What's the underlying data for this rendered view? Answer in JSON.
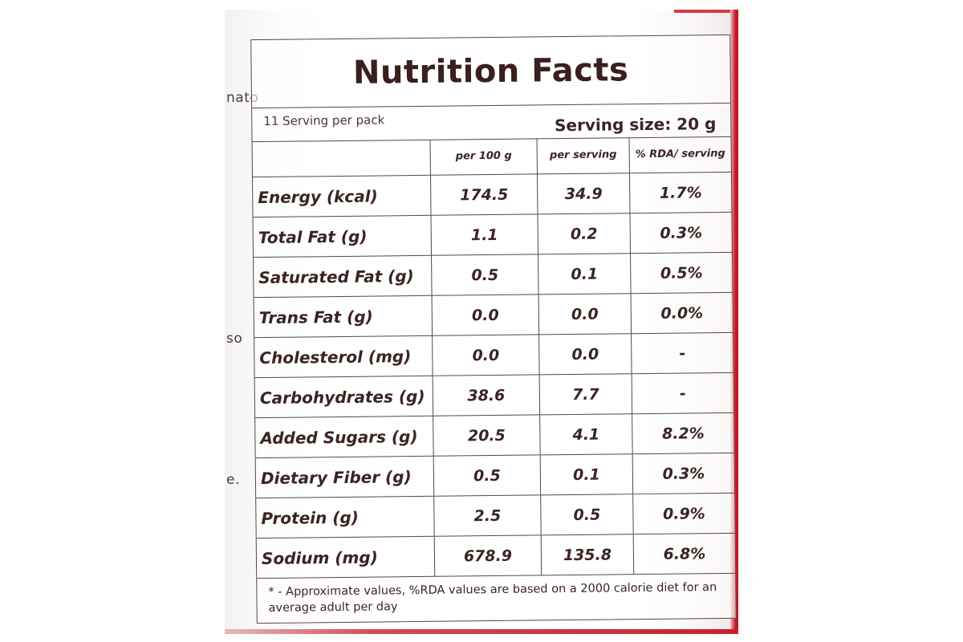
{
  "side_text": {
    "top": "nato",
    "middle": "so",
    "lower": "e."
  },
  "label": {
    "title": "Nutrition Facts",
    "servings_per_pack": "11 Serving per pack",
    "serving_size": "Serving size: 20 g",
    "columns": [
      "",
      "per 100 g",
      "per serving",
      "% RDA/ serving"
    ],
    "rows": [
      {
        "name": "Energy (kcal)",
        "per_100g": "174.5",
        "per_serving": "34.9",
        "rda": "1.7%"
      },
      {
        "name": "Total Fat (g)",
        "per_100g": "1.1",
        "per_serving": "0.2",
        "rda": "0.3%"
      },
      {
        "name": "Saturated Fat (g)",
        "per_100g": "0.5",
        "per_serving": "0.1",
        "rda": "0.5%"
      },
      {
        "name": "Trans Fat (g)",
        "per_100g": "0.0",
        "per_serving": "0.0",
        "rda": "0.0%"
      },
      {
        "name": "Cholesterol (mg)",
        "per_100g": "0.0",
        "per_serving": "0.0",
        "rda": "-"
      },
      {
        "name": "Carbohydrates (g)",
        "per_100g": "38.6",
        "per_serving": "7.7",
        "rda": "-"
      },
      {
        "name": "Added Sugars (g)",
        "per_100g": "20.5",
        "per_serving": "4.1",
        "rda": "8.2%"
      },
      {
        "name": "Dietary Fiber (g)",
        "per_100g": "0.5",
        "per_serving": "0.1",
        "rda": "0.3%"
      },
      {
        "name": "Protein (g)",
        "per_100g": "2.5",
        "per_serving": "0.5",
        "rda": "0.9%"
      },
      {
        "name": "Sodium (mg)",
        "per_100g": "678.9",
        "per_serving": "135.8",
        "rda": "6.8%"
      }
    ],
    "footnote": "* - Approximate values, %RDA values are based on a 2000 calorie diet for an average adult per day"
  },
  "colors": {
    "ink": "#3a2422",
    "border": "#5a4542",
    "jar_red": "#c8202a"
  }
}
